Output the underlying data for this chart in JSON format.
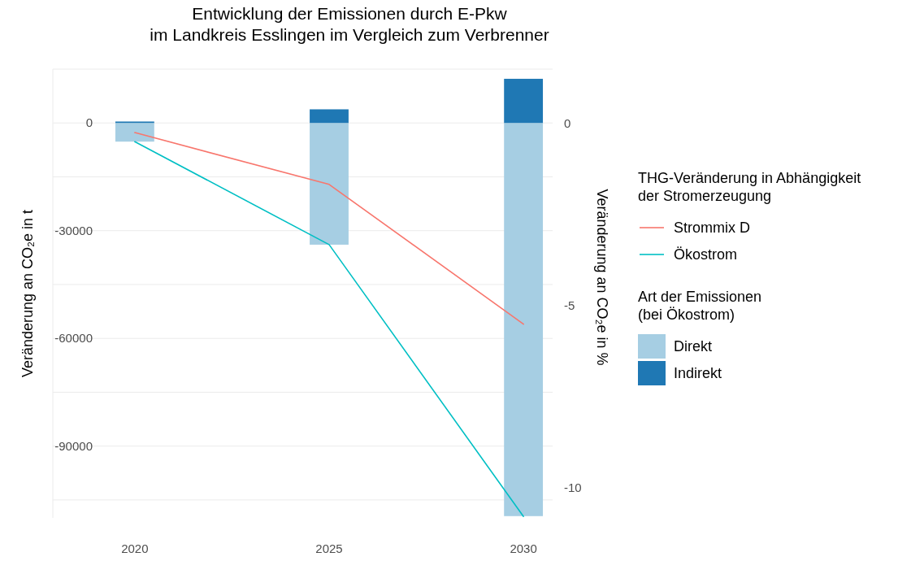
{
  "chart_data": {
    "type": "bar",
    "title": "Entwicklung der Emissionen durch E-Pkw\nim Landkreis Esslingen im Vergleich zum Verbrenner",
    "ylabel": "Veränderung an CO₂e in t",
    "y2label": "Veränderung an CO₂e in %",
    "legend_title": [
      "THG-Veränderung in Abhängigkeit\nder Stromerzeugung",
      "Art der Emissionen\n(bei Ökostrom)"
    ],
    "categories": [
      "2020",
      "2025",
      "2030"
    ],
    "stacked": true,
    "series": [
      {
        "name": "Direkt",
        "color": "#a6cee3",
        "values": [
          -5200,
          -33900,
          -109500
        ]
      },
      {
        "name": "Indirekt",
        "color": "#1f78b4",
        "values": [
          400,
          3800,
          12300
        ]
      },
      {
        "name": "Strommix D",
        "type": "line",
        "axis": "y2",
        "color": "#f8766d",
        "values": [
          -0.26,
          -1.68,
          -5.51
        ]
      },
      {
        "name": "Ökostrom",
        "type": "line",
        "axis": "y2",
        "color": "#00bfc4",
        "values": [
          -0.51,
          -3.33,
          -10.78
        ]
      }
    ],
    "ylim": [
      -110000,
      15000
    ],
    "yticks": [
      {
        "value": 15000,
        "label": null
      },
      0,
      {
        "value": -15000,
        "label": null
      },
      -30000,
      {
        "value": -45000,
        "label": null
      },
      -60000,
      {
        "value": -75000,
        "label": null
      },
      -90000,
      {
        "value": -105000,
        "label": null
      }
    ],
    "y2lim": [
      -10.82,
      1.48
    ],
    "y2ticks": [
      0,
      -5,
      -10
    ],
    "grid": "y",
    "legend": "right"
  }
}
